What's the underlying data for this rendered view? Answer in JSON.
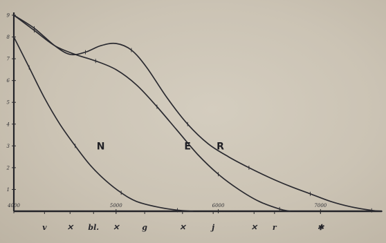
{
  "chart_data": {
    "type": "line",
    "title": "",
    "xlabel": "",
    "ylabel": "",
    "xlim": [
      4000,
      7600
    ],
    "ylim": [
      0,
      9
    ],
    "y_ticks": [
      {
        "value": 9,
        "label": "9"
      },
      {
        "value": 8,
        "label": "8"
      },
      {
        "value": 7,
        "label": "7"
      },
      {
        "value": 6,
        "label": "6"
      },
      {
        "value": 5,
        "label": "5"
      },
      {
        "value": 4,
        "label": "4"
      },
      {
        "value": 3,
        "label": "3"
      },
      {
        "value": 2,
        "label": "2"
      },
      {
        "value": 1,
        "label": "1"
      }
    ],
    "x_ticks": [
      {
        "value": 4000,
        "label": "4000"
      },
      {
        "value": 5000,
        "label": "5000"
      },
      {
        "value": 6000,
        "label": "6000"
      },
      {
        "value": 7000,
        "label": "7000"
      }
    ],
    "x_marks": [
      {
        "value": 4300,
        "label": "v"
      },
      {
        "value": 4550,
        "label": "✕"
      },
      {
        "value": 4780,
        "label": "bl."
      },
      {
        "value": 5000,
        "label": "✕"
      },
      {
        "value": 5280,
        "label": "g"
      },
      {
        "value": 5650,
        "label": "✕"
      },
      {
        "value": 5950,
        "label": "j"
      },
      {
        "value": 6350,
        "label": "✕"
      },
      {
        "value": 6550,
        "label": "r"
      },
      {
        "value": 7000,
        "label": "✱"
      }
    ],
    "grid": false,
    "series": [
      {
        "name": "N",
        "color": "#2a2a30",
        "points": [
          [
            4000,
            8.0
          ],
          [
            4150,
            6.6
          ],
          [
            4300,
            5.2
          ],
          [
            4450,
            4.0
          ],
          [
            4600,
            3.0
          ],
          [
            4750,
            2.1
          ],
          [
            4900,
            1.4
          ],
          [
            5050,
            0.85
          ],
          [
            5200,
            0.45
          ],
          [
            5400,
            0.2
          ],
          [
            5600,
            0.05
          ],
          [
            5750,
            0.0
          ]
        ]
      },
      {
        "name": "E",
        "color": "#2a2a30",
        "points": [
          [
            4000,
            9.0
          ],
          [
            4200,
            8.3
          ],
          [
            4400,
            7.6
          ],
          [
            4600,
            7.2
          ],
          [
            4800,
            6.9
          ],
          [
            5000,
            6.5
          ],
          [
            5200,
            5.8
          ],
          [
            5400,
            4.8
          ],
          [
            5600,
            3.7
          ],
          [
            5800,
            2.6
          ],
          [
            6000,
            1.7
          ],
          [
            6200,
            1.0
          ],
          [
            6400,
            0.45
          ],
          [
            6600,
            0.1
          ],
          [
            6700,
            0.0
          ]
        ]
      },
      {
        "name": "R",
        "color": "#2a2a30",
        "points": [
          [
            4000,
            9.0
          ],
          [
            4200,
            8.4
          ],
          [
            4400,
            7.6
          ],
          [
            4550,
            7.2
          ],
          [
            4700,
            7.3
          ],
          [
            4850,
            7.6
          ],
          [
            5000,
            7.7
          ],
          [
            5150,
            7.4
          ],
          [
            5300,
            6.6
          ],
          [
            5500,
            5.2
          ],
          [
            5700,
            4.0
          ],
          [
            5900,
            3.1
          ],
          [
            6100,
            2.5
          ],
          [
            6300,
            2.0
          ],
          [
            6500,
            1.55
          ],
          [
            6700,
            1.15
          ],
          [
            6900,
            0.8
          ],
          [
            7100,
            0.45
          ],
          [
            7300,
            0.2
          ],
          [
            7500,
            0.04
          ],
          [
            7600,
            0.0
          ]
        ]
      }
    ],
    "curve_labels": [
      {
        "series": "N",
        "text": "N",
        "x": 4850,
        "y": 3.0
      },
      {
        "series": "E",
        "text": "E",
        "x": 5700,
        "y": 3.0
      },
      {
        "series": "R",
        "text": "R",
        "x": 6020,
        "y": 3.0
      }
    ]
  }
}
